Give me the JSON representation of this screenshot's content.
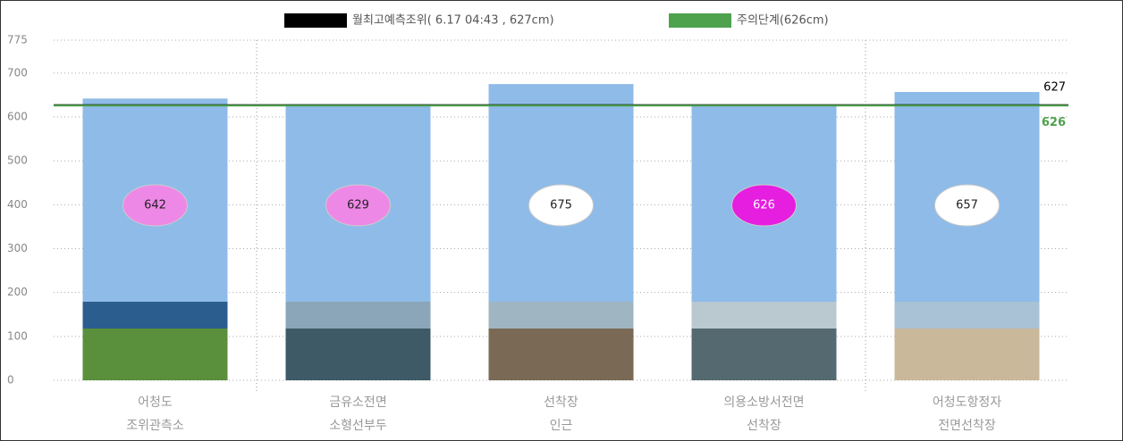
{
  "chart_data": {
    "type": "bar",
    "categories": [
      [
        "어청도",
        "조위관측소"
      ],
      [
        "금유소전면",
        "소형선부두"
      ],
      [
        "선착장",
        "인근"
      ],
      [
        "의용소방서전면",
        "선착장"
      ],
      [
        "어청도항정자",
        "전면선착장"
      ]
    ],
    "values": [
      642,
      629,
      675,
      626,
      657
    ],
    "color": "#8fbbe8",
    "label_colors": [
      "#ee88e6",
      "#ee88e6",
      "#ffffff",
      "#e61ee0",
      "#ffffff"
    ],
    "ylim": [
      0,
      775
    ],
    "yticks": [
      0,
      100,
      200,
      300,
      400,
      500,
      600,
      700,
      775
    ],
    "grid": true,
    "reference_lines": [
      {
        "name": "월최고예측조위( 6.17  04:43 , 627cm)",
        "value": 627,
        "color": "#000000"
      },
      {
        "name": "주의단계(626cm)",
        "value": 626,
        "color": "#4ea24e"
      }
    ]
  }
}
